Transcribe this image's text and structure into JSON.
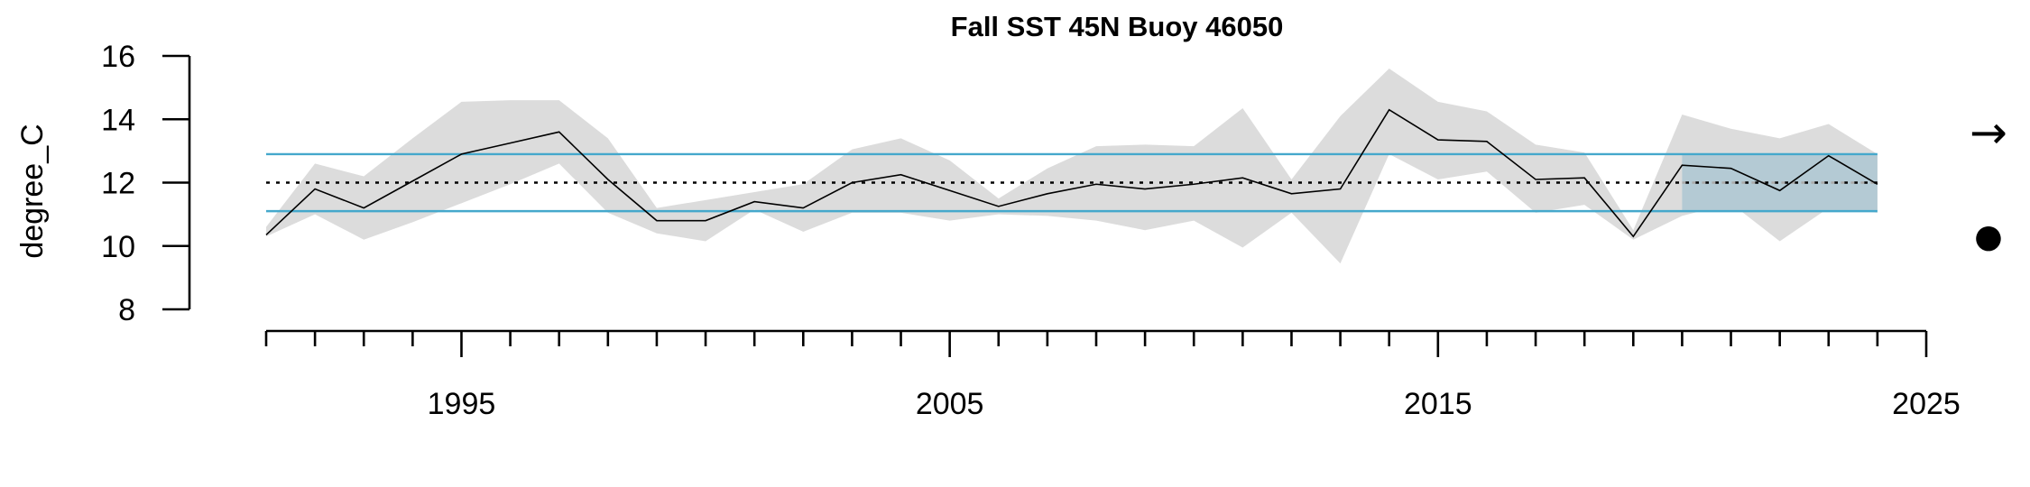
{
  "chart_data": {
    "type": "line",
    "title": "Fall SST 45N Buoy 46050",
    "xlabel": "",
    "ylabel": "degree_C",
    "xlim": [
      1991,
      2025
    ],
    "ylim": [
      8,
      16
    ],
    "x_ticks": [
      1995,
      2005,
      2015,
      2025
    ],
    "y_ticks": [
      8,
      10,
      12,
      14,
      16
    ],
    "x": [
      1991,
      1992,
      1993,
      1994,
      1995,
      1996,
      1997,
      1998,
      1999,
      2000,
      2001,
      2002,
      2003,
      2004,
      2005,
      2006,
      2007,
      2008,
      2009,
      2010,
      2011,
      2012,
      2013,
      2014,
      2015,
      2016,
      2017,
      2018,
      2019,
      2020,
      2021,
      2022,
      2023,
      2024
    ],
    "series": [
      {
        "values": [
          10.35,
          11.8,
          11.2,
          12.05,
          12.9,
          13.25,
          13.6,
          12.1,
          10.8,
          10.8,
          11.4,
          11.2,
          12.0,
          12.25,
          11.75,
          11.25,
          11.65,
          11.95,
          11.8,
          11.95,
          12.15,
          11.65,
          11.8,
          14.3,
          13.35,
          13.3,
          12.1,
          12.15,
          10.3,
          12.55,
          12.45,
          11.75,
          12.85,
          11.95
        ],
        "upper": [
          10.6,
          12.6,
          12.2,
          13.4,
          14.55,
          14.6,
          14.6,
          13.4,
          11.2,
          11.45,
          11.7,
          11.95,
          13.05,
          13.4,
          12.7,
          11.5,
          12.45,
          13.15,
          13.2,
          13.15,
          14.35,
          12.1,
          14.1,
          15.6,
          14.55,
          14.25,
          13.2,
          12.95,
          10.5,
          14.15,
          13.7,
          13.4,
          13.85,
          12.9
        ],
        "lower": [
          10.3,
          11.0,
          10.2,
          10.75,
          11.35,
          11.95,
          12.6,
          11.05,
          10.4,
          10.15,
          11.15,
          10.45,
          11.05,
          11.05,
          10.8,
          11.0,
          10.95,
          10.8,
          10.5,
          10.8,
          9.95,
          11.05,
          9.45,
          12.9,
          12.1,
          12.35,
          11.05,
          11.3,
          10.2,
          10.95,
          11.35,
          10.15,
          11.2,
          11.05
        ],
        "color": "#000000"
      }
    ],
    "mean": 12.0,
    "mean_plus_sd": 12.9,
    "mean_minus_sd": 11.1,
    "recent_window": [
      2020,
      2024
    ],
    "trend_symbol": "→",
    "mean_symbol": "●",
    "colors": {
      "ci_band": "#dcdcdc",
      "sd_line": "#45a8cc",
      "recent_box": "#b4cad4",
      "below_fill": "#3aaad8",
      "mean_line": "#000000",
      "long_term_dashed": "#aaaaaa"
    },
    "grid": false,
    "legend": "none"
  }
}
